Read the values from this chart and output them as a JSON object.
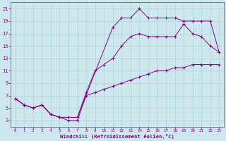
{
  "background_color": "#cce8ee",
  "grid_color": "#aacfcc",
  "line_color": "#880088",
  "xlabel": "Windchill (Refroidissement éolien,°C)",
  "xlim": [
    -0.5,
    23.5
  ],
  "ylim": [
    2,
    22
  ],
  "xticks": [
    0,
    1,
    2,
    3,
    4,
    5,
    6,
    7,
    8,
    9,
    10,
    11,
    12,
    13,
    14,
    15,
    16,
    17,
    18,
    19,
    20,
    21,
    22,
    23
  ],
  "yticks": [
    3,
    5,
    7,
    9,
    11,
    13,
    15,
    17,
    19,
    21
  ],
  "series": [
    {
      "x": [
        0,
        1,
        2,
        3,
        4,
        5,
        6,
        7,
        11,
        12,
        13,
        14,
        15,
        16,
        17,
        18,
        19,
        20,
        21,
        22,
        23
      ],
      "y": [
        6.5,
        5.5,
        5.0,
        5.5,
        4.0,
        3.5,
        3.5,
        3.5,
        18.0,
        19.5,
        19.5,
        21.0,
        19.5,
        19.5,
        19.5,
        19.5,
        19.0,
        19.0,
        19.0,
        19.0,
        14.0
      ]
    },
    {
      "x": [
        0,
        1,
        2,
        3,
        4,
        5,
        6,
        7,
        8,
        9,
        10,
        11,
        12,
        13,
        14,
        15,
        16,
        17,
        18,
        19,
        20,
        21,
        22,
        23
      ],
      "y": [
        6.5,
        5.5,
        5.0,
        5.5,
        4.0,
        3.5,
        3.5,
        3.5,
        7.5,
        11.0,
        12.0,
        13.0,
        15.0,
        16.5,
        17.0,
        16.5,
        16.5,
        16.5,
        16.5,
        18.5,
        17.0,
        16.5,
        15.0,
        14.0
      ]
    },
    {
      "x": [
        0,
        1,
        2,
        3,
        4,
        5,
        6,
        7,
        8,
        9,
        10,
        11,
        12,
        13,
        14,
        15,
        16,
        17,
        18,
        19,
        20,
        21,
        22,
        23
      ],
      "y": [
        6.5,
        5.5,
        5.0,
        5.5,
        4.0,
        3.5,
        3.0,
        3.0,
        7.0,
        7.5,
        8.0,
        8.5,
        9.0,
        9.5,
        10.0,
        10.5,
        11.0,
        11.0,
        11.5,
        11.5,
        12.0,
        12.0,
        12.0,
        12.0
      ]
    }
  ]
}
